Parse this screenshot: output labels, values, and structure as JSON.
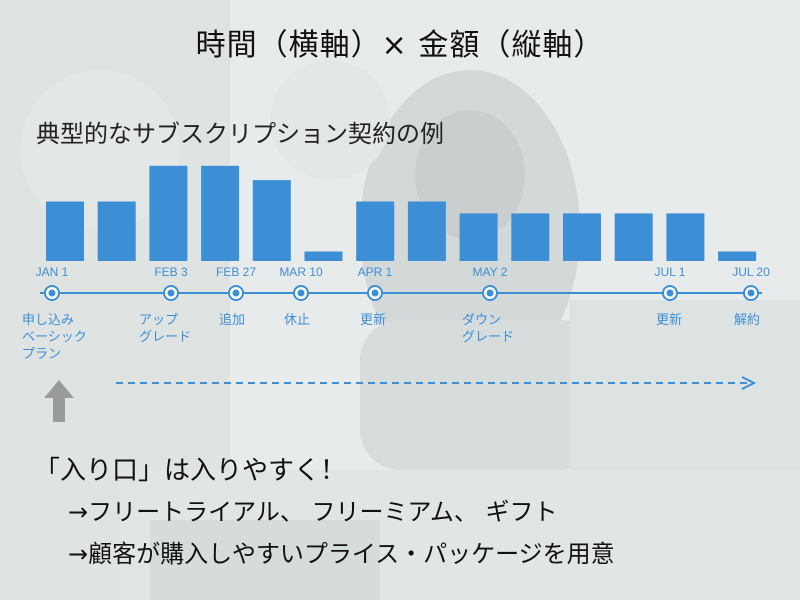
{
  "title": "時間（横軸）× 金額（縦軸）",
  "subtitle": "典型的なサブスクリプション契約の例",
  "chart_data": {
    "type": "bar",
    "values": [
      50,
      50,
      80,
      80,
      68,
      8,
      50,
      50,
      40,
      40,
      40,
      40,
      40,
      8
    ]
  },
  "timeline": {
    "events": [
      {
        "date": "JAN 1",
        "label_lines": [
          "申し込み",
          "ベーシック",
          "プラン"
        ]
      },
      {
        "date": "FEB 3",
        "label_lines": [
          "アップ",
          "グレード"
        ]
      },
      {
        "date": "FEB 27",
        "label_lines": [
          "追加"
        ]
      },
      {
        "date": "MAR 10",
        "label_lines": [
          "休止"
        ]
      },
      {
        "date": "APR 1",
        "label_lines": [
          "更新"
        ]
      },
      {
        "date": "MAY 2",
        "label_lines": [
          "ダウン",
          "グレード"
        ]
      },
      {
        "date": "JUL 1",
        "label_lines": [
          "更新"
        ]
      },
      {
        "date": "JUL 20",
        "label_lines": [
          "解約"
        ]
      }
    ]
  },
  "entry_heading": "「入り口」は入りやすく！",
  "bullets": [
    "→フリートライアル、 フリーミアム、 ギフト",
    "→顧客が購入しやすいプライス・パッケージを用意"
  ],
  "colors": {
    "accent": "#3d8fd5",
    "bar": "#3d8fd5",
    "background": "#e9ecec"
  }
}
